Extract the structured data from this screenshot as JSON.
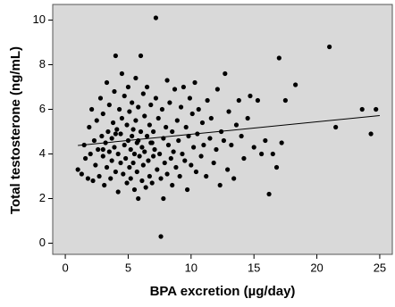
{
  "chart_data": {
    "type": "scatter",
    "x_label": "BPA excretion (µg/day)",
    "y_label": "Total testosterone (ng/mL)",
    "xlim": [
      -1,
      26
    ],
    "ylim": [
      -0.5,
      10.7
    ],
    "xticks": [
      0,
      5,
      10,
      15,
      20,
      25
    ],
    "yticks": [
      0,
      2,
      4,
      6,
      8,
      10
    ],
    "background": "#d9d9d9",
    "color": "#000000",
    "x": [
      1.0,
      1.3,
      1.5,
      1.6,
      1.8,
      1.9,
      2.0,
      2.1,
      2.2,
      2.3,
      2.4,
      2.5,
      2.6,
      2.7,
      2.8,
      2.9,
      3.0,
      3.0,
      3.1,
      3.2,
      3.3,
      3.3,
      3.4,
      3.5,
      3.5,
      3.6,
      3.7,
      3.7,
      3.8,
      3.9,
      3.9,
      4.0,
      4.0,
      4.1,
      4.2,
      4.2,
      4.3,
      4.4,
      4.4,
      4.5,
      4.5,
      4.6,
      4.7,
      4.7,
      4.8,
      4.9,
      4.9,
      5.0,
      5.0,
      5.1,
      5.1,
      5.2,
      5.2,
      5.3,
      5.3,
      5.4,
      5.4,
      5.5,
      5.5,
      5.6,
      5.6,
      5.7,
      5.7,
      5.8,
      5.8,
      5.9,
      6.0,
      6.0,
      6.1,
      6.1,
      6.2,
      6.2,
      6.3,
      6.3,
      6.4,
      6.5,
      6.5,
      6.6,
      6.7,
      6.7,
      6.8,
      6.8,
      6.9,
      7.0,
      7.0,
      7.1,
      7.2,
      7.2,
      7.3,
      7.4,
      7.5,
      7.6,
      7.6,
      7.7,
      7.8,
      7.8,
      7.9,
      8.0,
      8.1,
      8.1,
      8.2,
      8.3,
      8.4,
      8.5,
      8.5,
      8.6,
      8.7,
      8.8,
      8.9,
      9.0,
      9.1,
      9.2,
      9.3,
      9.4,
      9.5,
      9.6,
      9.7,
      9.8,
      9.9,
      10.0,
      10.1,
      10.2,
      10.3,
      10.4,
      10.5,
      10.6,
      10.8,
      10.9,
      11.0,
      11.2,
      11.3,
      11.5,
      11.6,
      11.8,
      12.0,
      12.1,
      12.3,
      12.4,
      12.6,
      12.7,
      12.9,
      13.0,
      13.2,
      13.4,
      13.6,
      13.8,
      14.0,
      14.2,
      14.5,
      14.7,
      15.0,
      15.3,
      15.6,
      15.9,
      16.2,
      16.5,
      16.8,
      17.0,
      17.2,
      17.5,
      18.3,
      21.0,
      21.5,
      23.6,
      24.3,
      24.7,
      3.0,
      5.8,
      6.9,
      4.0
    ],
    "values": [
      3.3,
      3.1,
      4.4,
      3.8,
      2.9,
      5.2,
      4.0,
      6.0,
      2.8,
      4.6,
      3.5,
      5.5,
      4.2,
      3.0,
      6.5,
      4.8,
      3.9,
      5.8,
      2.6,
      4.5,
      7.2,
      3.4,
      5.0,
      4.1,
      6.2,
      2.9,
      4.7,
      3.7,
      5.4,
      6.8,
      4.3,
      8.4,
      3.2,
      5.1,
      4.0,
      2.3,
      6.0,
      3.6,
      4.9,
      7.6,
      5.6,
      3.1,
      4.4,
      6.6,
      3.8,
      5.3,
      2.7,
      4.6,
      7.0,
      3.4,
      5.9,
      4.2,
      2.9,
      6.3,
      4.8,
      3.6,
      5.1,
      2.4,
      4.0,
      7.4,
      5.5,
      3.2,
      4.5,
      6.1,
      2.0,
      3.9,
      8.4,
      5.0,
      4.3,
      2.8,
      6.7,
      3.5,
      5.7,
      4.1,
      2.5,
      4.8,
      7.0,
      3.7,
      5.3,
      3.0,
      4.5,
      6.2,
      2.7,
      5.0,
      3.9,
      4.2,
      10.1,
      6.5,
      3.3,
      5.6,
      4.0,
      0.3,
      2.9,
      6.0,
      2.0,
      4.7,
      3.6,
      5.2,
      7.3,
      3.1,
      4.4,
      6.3,
      3.8,
      5.0,
      2.6,
      4.1,
      6.9,
      3.4,
      5.5,
      4.6,
      3.0,
      6.1,
      4.0,
      7.0,
      3.7,
      5.2,
      2.4,
      4.8,
      6.5,
      3.5,
      5.8,
      4.3,
      7.2,
      3.2,
      4.9,
      6.0,
      3.9,
      5.4,
      4.4,
      3.0,
      6.4,
      4.7,
      5.6,
      3.6,
      4.2,
      6.9,
      2.6,
      5.0,
      4.6,
      7.6,
      3.3,
      5.9,
      4.4,
      2.9,
      5.3,
      6.4,
      4.8,
      3.8,
      5.6,
      6.6,
      4.3,
      6.4,
      4.0,
      4.6,
      2.2,
      4.0,
      3.4,
      8.3,
      4.5,
      6.4,
      7.1,
      8.8,
      5.2,
      6.0,
      4.9,
      6.0,
      4.2,
      4.6,
      4.5,
      4.9
    ],
    "trend": {
      "x": [
        1,
        25
      ],
      "y": [
        4.38,
        5.72
      ]
    }
  }
}
